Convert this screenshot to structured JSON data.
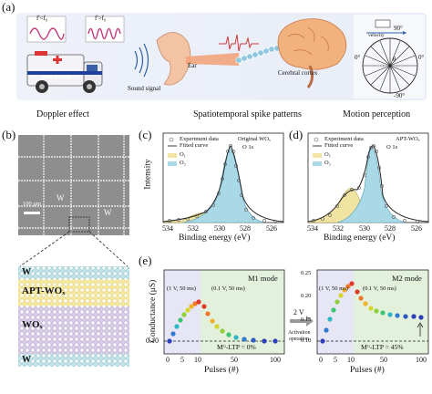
{
  "panel_a": {
    "letter": "(a)",
    "wave1_label": "f'<f₀",
    "wave2_label": "f'>f₀",
    "ambulance_text": "AMBULANCE",
    "ear_label": "Ear",
    "sound_label": "Sound signal",
    "cortex_label": "Cerebral cortex",
    "velocity_label": "velocity",
    "angles": {
      "top": "90°",
      "left": "0°",
      "right": "0°",
      "bottom": "-90°",
      "theta": "θ"
    },
    "captions": {
      "doppler": "Doppler effect",
      "spike": "Spatiotemporal spike patterns",
      "motion": "Motion perception"
    }
  },
  "panel_b": {
    "letter": "(b)",
    "scale_bar": "100 μm",
    "w_label": "W",
    "layers": [
      "W",
      "APT-WOₓ",
      "WOₓ",
      "W"
    ]
  },
  "panel_c": {
    "letter": "(c)",
    "legend": [
      "Experiment data",
      "Fitted curve"
    ],
    "sample": "Original WOₓ",
    "peak_label": "O 1s",
    "components": [
      "O₁",
      "O₂"
    ],
    "xlabel": "Binding energy (eV)",
    "ylabel": "Intensity",
    "xticks": [
      "534",
      "532",
      "530",
      "528",
      "526"
    ]
  },
  "panel_d": {
    "letter": "(d)",
    "legend": [
      "Experiment data",
      "Fitted curve"
    ],
    "sample": "APT-WOₓ",
    "peak_label": "O 1s",
    "components": [
      "O₁",
      "O₂"
    ],
    "xlabel": "Binding energy (eV)",
    "xticks": [
      "534",
      "532",
      "530",
      "528",
      "526"
    ]
  },
  "panel_e": {
    "letter": "(e)",
    "ylabel": "Conductance (μS)",
    "xlabel": "Pulses (#)",
    "left": {
      "mode": "M1 mode",
      "pulse1": "(1 V, 50 ms)",
      "pulse2": "(0.1 V, 50 ms)",
      "annotation": "Mᴳ-LTP = 0%",
      "yticks": [
        "0.10"
      ],
      "xticks": [
        "0",
        "5",
        "10",
        "50",
        "100"
      ]
    },
    "arrow": {
      "voltage": "2 V",
      "text1": "Activation",
      "text2": "operation"
    },
    "right": {
      "mode": "M2 mode",
      "pulse1": "(1 V, 50 ms)",
      "pulse2": "(0.1 V, 50 ms)",
      "annotation": "Mᴳ-LTP = 45%",
      "yticks": [
        "0.25",
        "0.20",
        "0.15",
        "0.10"
      ],
      "xticks": [
        "0",
        "5",
        "10",
        "50",
        "100"
      ]
    }
  },
  "colors": {
    "peak_blue": "#a9d8e6",
    "peak_yellow": "#f1e3a2",
    "panel_bg_purple": "#e6e6f5",
    "panel_bg_green": "#e3f1dc"
  }
}
